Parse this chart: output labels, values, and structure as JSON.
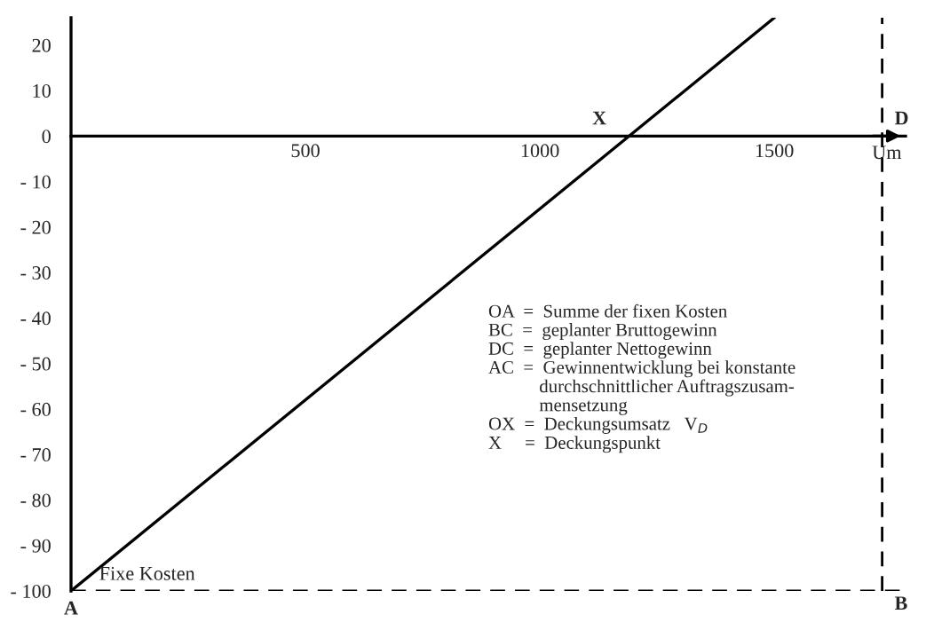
{
  "chart_data": {
    "type": "line",
    "x": [
      0,
      1500
    ],
    "series": [
      {
        "color": "#000000",
        "values": [
          -100,
          26
        ]
      }
    ],
    "xlim": [
      0,
      1780
    ],
    "ylim": [
      -100,
      26
    ],
    "xticks": [
      500,
      1000,
      1500
    ],
    "yticks": [
      20,
      10,
      0,
      {
        "value": -10,
        "label": "- 10"
      },
      {
        "value": -20,
        "label": "- 20"
      },
      {
        "value": -30,
        "label": "- 30"
      },
      {
        "value": -40,
        "label": "- 40"
      },
      {
        "value": -50,
        "label": "- 50"
      },
      {
        "value": -60,
        "label": "- 60"
      },
      {
        "value": -70,
        "label": "- 70"
      },
      {
        "value": -80,
        "label": "- 80"
      },
      {
        "value": -90,
        "label": "- 90"
      },
      {
        "value": -100,
        "label": "- 100"
      }
    ],
    "xlabel": "Um",
    "grid": false,
    "marker": "none",
    "line_style": "solid",
    "ref_lines": [
      {
        "axis": "y",
        "value": -100,
        "label": "Fixe Kosten",
        "color": "#000000",
        "line_style": "dashed"
      },
      {
        "axis": "x",
        "value": 1730,
        "color": "#000000",
        "line_style": "dashed"
      }
    ],
    "annotations": [
      {
        "text": "A",
        "x": 0,
        "y": -100
      },
      {
        "text": "B",
        "x": 1730,
        "y": -100
      },
      {
        "text": "D",
        "x": 1730,
        "y": 0
      },
      {
        "text": "X",
        "x": 1190,
        "y": 0
      },
      "OA  =  Summe der fixen Kosten\nBC  =  geplanter Bruttogewinn\nDC  =  geplanter Nettogewinn\nAC  =  Gewinnentwicklung bei konstante\n           durchschnittlicher Auftragszusam-\n           mensetzung\nOX  =  Deckungsumsatz   V$_{D}$\nX     =  Deckungspunkt"
    ]
  }
}
